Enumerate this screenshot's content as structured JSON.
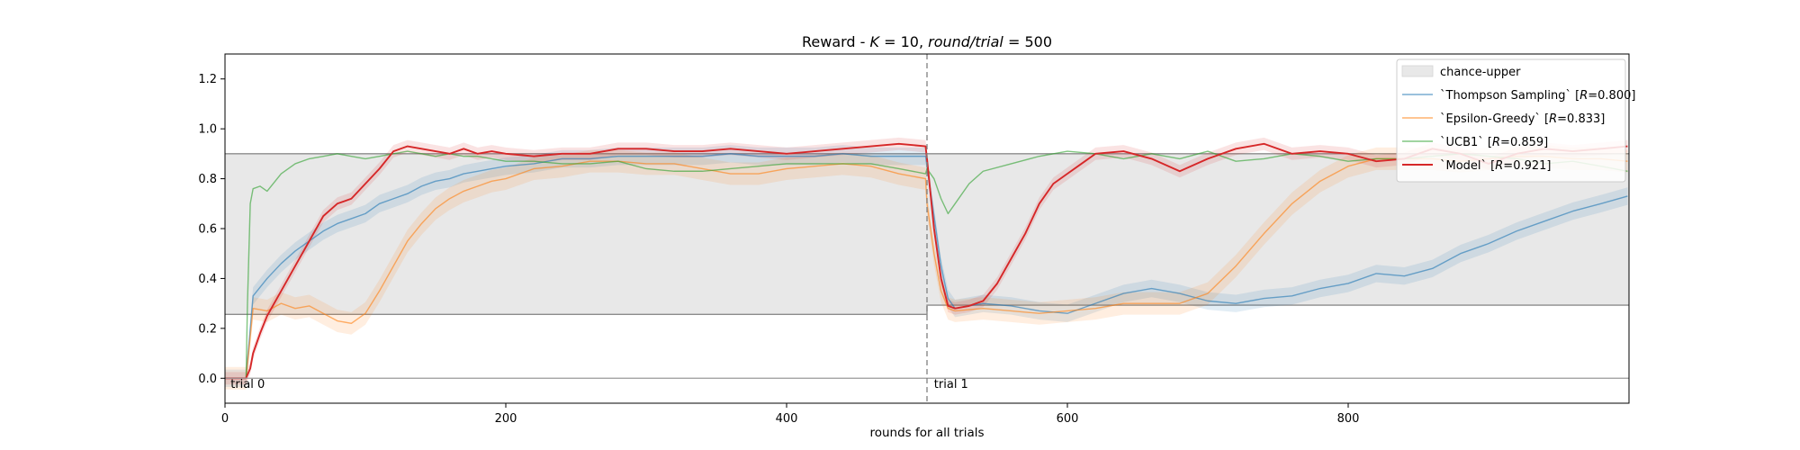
{
  "chart_data": {
    "type": "line",
    "title": "Reward - K = 10, round/trial = 500",
    "title_parts": {
      "prefix": "Reward - ",
      "k_sym": "K",
      "k_eq": " = 10, ",
      "rt_sym": "round/trial",
      "rt_eq": " = 500"
    },
    "xlabel": "rounds for all trials",
    "ylabel": "",
    "xlim": [
      0,
      1000
    ],
    "ylim": [
      -0.1,
      1.3
    ],
    "x_ticks": [
      0,
      200,
      400,
      600,
      800
    ],
    "x_tick_labels": [
      "0",
      "200",
      "400",
      "600",
      "800"
    ],
    "y_ticks": [
      0.0,
      0.2,
      0.4,
      0.6,
      0.8,
      1.0,
      1.2
    ],
    "y_tick_labels": [
      "0.0",
      "0.2",
      "0.4",
      "0.6",
      "0.8",
      "1.0",
      "1.2"
    ],
    "grid": false,
    "legend_position": "top-right",
    "trial_boundary_x": 500,
    "annotations": [
      {
        "text": "trial 0",
        "x": 4,
        "y": -0.01
      },
      {
        "text": "trial 1",
        "x": 505,
        "y": -0.01
      }
    ],
    "band": {
      "name": "chance-upper",
      "color": "#e8e8e8",
      "edge_color": "#8c8c8c",
      "segments": [
        {
          "x_start": 0,
          "x_end": 500,
          "lower": 0.256,
          "upper": 0.9
        },
        {
          "x_start": 500,
          "x_end": 1000,
          "lower": 0.293,
          "upper": 0.9
        }
      ]
    },
    "zero_line": 0.0,
    "series": [
      {
        "name": "`Thompson Sampling` [R=0.800]",
        "legend": {
          "prefix": "`Thompson Sampling` [",
          "sym": "R",
          "suffix": "=0.800]"
        },
        "color": "#1f77b4",
        "band_half_width": 0.035,
        "x": [
          0,
          14,
          15,
          20,
          30,
          40,
          50,
          60,
          70,
          80,
          90,
          100,
          110,
          120,
          130,
          140,
          150,
          160,
          170,
          180,
          190,
          200,
          220,
          240,
          260,
          280,
          300,
          320,
          340,
          360,
          380,
          400,
          420,
          440,
          460,
          480,
          499,
          500,
          505,
          510,
          515,
          520,
          540,
          560,
          580,
          600,
          620,
          640,
          660,
          680,
          700,
          720,
          740,
          760,
          780,
          800,
          820,
          840,
          860,
          880,
          900,
          920,
          940,
          960,
          980,
          999
        ],
        "values": [
          0.0,
          0.0,
          0.0,
          0.33,
          0.4,
          0.46,
          0.51,
          0.55,
          0.59,
          0.62,
          0.64,
          0.66,
          0.7,
          0.72,
          0.74,
          0.77,
          0.79,
          0.8,
          0.82,
          0.83,
          0.84,
          0.85,
          0.86,
          0.88,
          0.88,
          0.89,
          0.89,
          0.89,
          0.89,
          0.9,
          0.89,
          0.89,
          0.89,
          0.9,
          0.89,
          0.89,
          0.89,
          0.85,
          0.65,
          0.45,
          0.32,
          0.28,
          0.3,
          0.29,
          0.27,
          0.26,
          0.3,
          0.34,
          0.36,
          0.34,
          0.31,
          0.3,
          0.32,
          0.33,
          0.36,
          0.38,
          0.42,
          0.41,
          0.44,
          0.5,
          0.54,
          0.59,
          0.63,
          0.67,
          0.7,
          0.73
        ]
      },
      {
        "name": "`Epsilon-Greedy` [R=0.833]",
        "legend": {
          "prefix": "`Epsilon-Greedy` [",
          "sym": "R",
          "suffix": "=0.833]"
        },
        "color": "#ff7f0e",
        "band_half_width": 0.045,
        "x": [
          0,
          14,
          15,
          20,
          30,
          40,
          50,
          60,
          70,
          80,
          90,
          100,
          110,
          120,
          130,
          140,
          150,
          160,
          170,
          180,
          190,
          200,
          220,
          240,
          260,
          280,
          300,
          320,
          340,
          360,
          380,
          400,
          420,
          440,
          460,
          480,
          499,
          500,
          505,
          510,
          515,
          520,
          540,
          560,
          580,
          600,
          620,
          640,
          660,
          680,
          700,
          720,
          740,
          760,
          780,
          800,
          820,
          840,
          860,
          880,
          900,
          920,
          940,
          960,
          980,
          999
        ],
        "values": [
          0.0,
          0.0,
          0.0,
          0.28,
          0.27,
          0.3,
          0.28,
          0.29,
          0.26,
          0.23,
          0.22,
          0.26,
          0.35,
          0.45,
          0.55,
          0.62,
          0.68,
          0.72,
          0.75,
          0.77,
          0.79,
          0.8,
          0.84,
          0.85,
          0.87,
          0.87,
          0.86,
          0.86,
          0.84,
          0.82,
          0.82,
          0.84,
          0.85,
          0.86,
          0.85,
          0.82,
          0.8,
          0.7,
          0.5,
          0.35,
          0.28,
          0.27,
          0.28,
          0.27,
          0.26,
          0.27,
          0.28,
          0.3,
          0.3,
          0.3,
          0.34,
          0.45,
          0.58,
          0.7,
          0.79,
          0.85,
          0.88,
          0.88,
          0.88,
          0.87,
          0.88,
          0.89,
          0.89,
          0.88,
          0.88,
          0.87
        ]
      },
      {
        "name": "`UCB1` [R=0.859]",
        "legend": {
          "prefix": "`UCB1` [",
          "sym": "R",
          "suffix": "=0.859]"
        },
        "color": "#2ca02c",
        "band_half_width": 0.0,
        "x": [
          0,
          14,
          15,
          16,
          18,
          20,
          25,
          30,
          40,
          50,
          60,
          70,
          80,
          90,
          100,
          110,
          120,
          130,
          140,
          150,
          160,
          170,
          180,
          190,
          200,
          220,
          240,
          260,
          280,
          300,
          320,
          340,
          360,
          380,
          400,
          420,
          440,
          460,
          480,
          499,
          500,
          505,
          510,
          515,
          520,
          530,
          540,
          560,
          580,
          600,
          620,
          640,
          660,
          680,
          700,
          720,
          740,
          760,
          780,
          800,
          820,
          840,
          860,
          880,
          900,
          920,
          940,
          960,
          980,
          999
        ],
        "values": [
          0.0,
          0.0,
          0.0,
          0.3,
          0.7,
          0.76,
          0.77,
          0.75,
          0.82,
          0.86,
          0.88,
          0.89,
          0.9,
          0.89,
          0.88,
          0.89,
          0.9,
          0.91,
          0.9,
          0.89,
          0.9,
          0.89,
          0.89,
          0.88,
          0.87,
          0.87,
          0.86,
          0.86,
          0.87,
          0.84,
          0.83,
          0.83,
          0.84,
          0.85,
          0.86,
          0.86,
          0.86,
          0.86,
          0.84,
          0.82,
          0.84,
          0.8,
          0.72,
          0.66,
          0.7,
          0.78,
          0.83,
          0.86,
          0.89,
          0.91,
          0.9,
          0.88,
          0.9,
          0.88,
          0.91,
          0.87,
          0.88,
          0.9,
          0.89,
          0.87,
          0.88,
          0.88,
          0.89,
          0.9,
          0.89,
          0.88,
          0.86,
          0.87,
          0.85,
          0.83
        ]
      },
      {
        "name": "`Model` [R=0.921]",
        "legend": {
          "prefix": "`Model` [",
          "sym": "R",
          "suffix": "=0.921]"
        },
        "color": "#d62728",
        "band_half_width": 0.025,
        "x": [
          0,
          14,
          15,
          18,
          20,
          25,
          30,
          40,
          50,
          60,
          70,
          80,
          90,
          100,
          110,
          120,
          130,
          140,
          150,
          160,
          170,
          180,
          190,
          200,
          220,
          240,
          260,
          280,
          300,
          320,
          340,
          360,
          380,
          400,
          420,
          440,
          460,
          480,
          499,
          500,
          505,
          510,
          515,
          520,
          530,
          540,
          550,
          560,
          570,
          580,
          590,
          600,
          610,
          620,
          640,
          660,
          680,
          700,
          720,
          740,
          760,
          780,
          800,
          820,
          840,
          860,
          880,
          900,
          920,
          940,
          960,
          980,
          999
        ],
        "values": [
          0.0,
          0.0,
          0.0,
          0.04,
          0.1,
          0.18,
          0.25,
          0.35,
          0.45,
          0.55,
          0.65,
          0.7,
          0.72,
          0.78,
          0.84,
          0.91,
          0.93,
          0.92,
          0.91,
          0.9,
          0.92,
          0.9,
          0.91,
          0.9,
          0.89,
          0.9,
          0.9,
          0.92,
          0.92,
          0.91,
          0.91,
          0.92,
          0.91,
          0.9,
          0.91,
          0.92,
          0.93,
          0.94,
          0.93,
          0.88,
          0.6,
          0.4,
          0.29,
          0.28,
          0.29,
          0.31,
          0.38,
          0.48,
          0.58,
          0.7,
          0.78,
          0.82,
          0.86,
          0.9,
          0.91,
          0.88,
          0.83,
          0.88,
          0.92,
          0.94,
          0.9,
          0.91,
          0.9,
          0.87,
          0.88,
          0.92,
          0.9,
          0.86,
          0.9,
          0.92,
          0.91,
          0.92,
          0.93
        ]
      }
    ]
  }
}
